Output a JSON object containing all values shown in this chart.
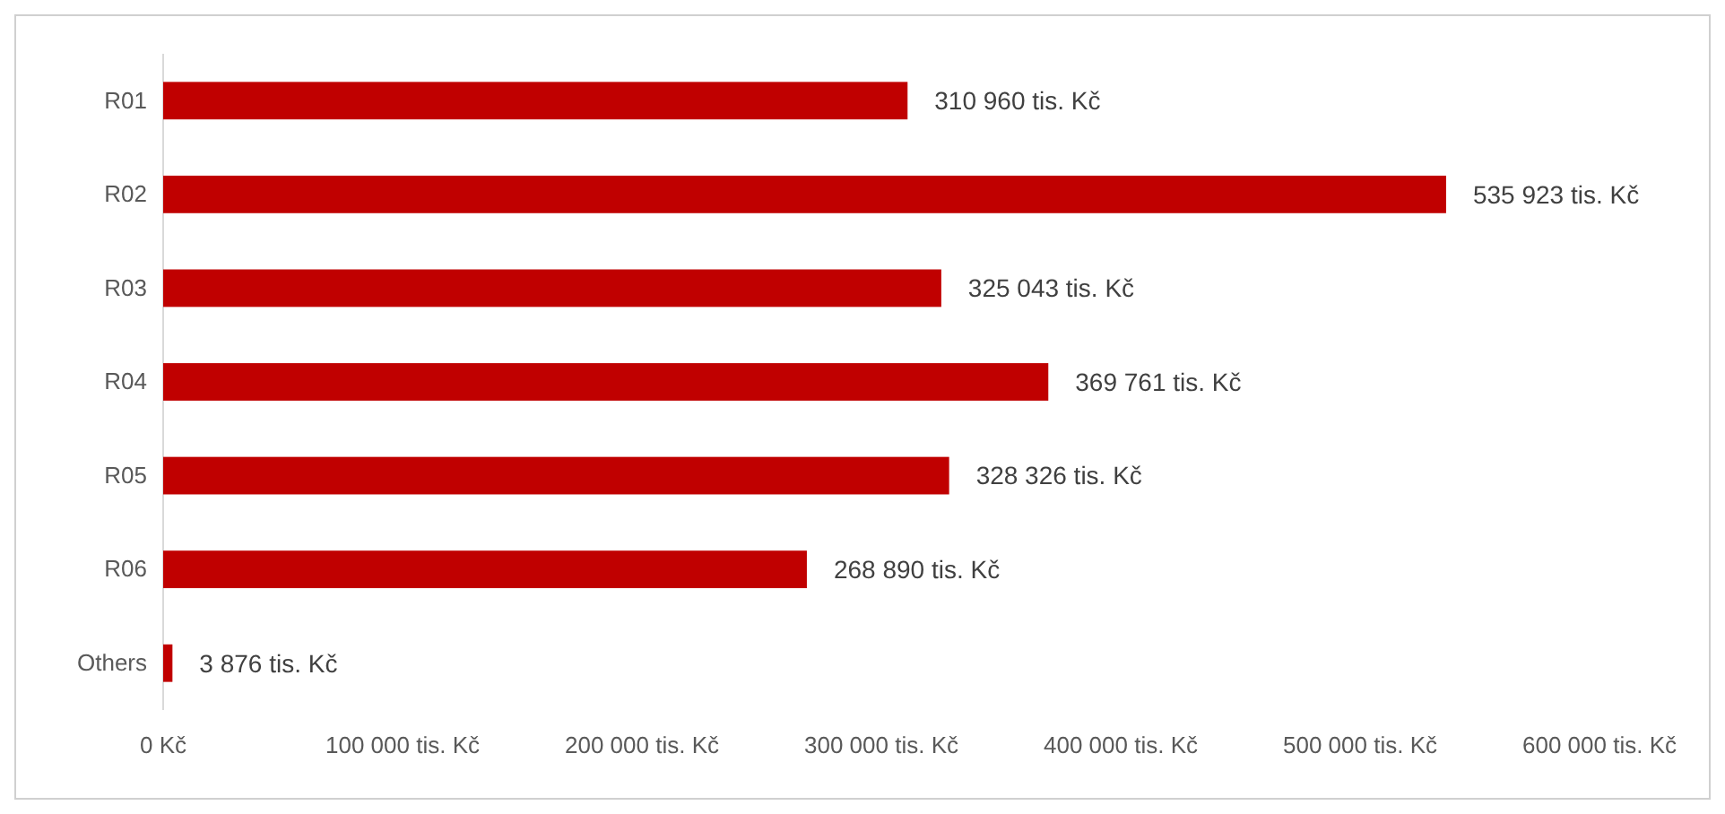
{
  "chart_data": {
    "type": "bar",
    "orientation": "horizontal",
    "categories": [
      "R01",
      "R02",
      "R03",
      "R04",
      "R05",
      "R06",
      "Others"
    ],
    "values": [
      310960,
      535923,
      325043,
      369761,
      328326,
      268890,
      3876
    ],
    "color": "#c00000",
    "value_labels": [
      "310 960 tis. Kč",
      "535 923 tis. Kč",
      "325 043 tis. Kč",
      "369 761 tis. Kč",
      "328 326 tis. Kč",
      "268 890 tis. Kč",
      "3 876 tis. Kč"
    ],
    "xlim": [
      0,
      600000
    ],
    "xticks": [
      {
        "value": 0,
        "label": "0 Kč"
      },
      {
        "value": 100000,
        "label": "100 000 tis. Kč"
      },
      {
        "value": 200000,
        "label": "200 000 tis. Kč"
      },
      {
        "value": 300000,
        "label": "300 000 tis. Kč"
      },
      {
        "value": 400000,
        "label": "400 000 tis. Kč"
      },
      {
        "value": 500000,
        "label": "500 000 tis. Kč"
      },
      {
        "value": 600000,
        "label": "600 000 tis. Kč"
      }
    ],
    "grid": false
  }
}
